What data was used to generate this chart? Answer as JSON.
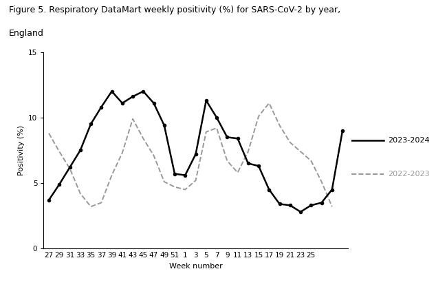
{
  "title_line1": "Figure 5. Respiratory DataMart weekly positivity (%) for SARS-CoV-2 by year,",
  "title_line2": "England",
  "xlabel": "Week number",
  "ylabel": "Positivity (%)",
  "ylim": [
    0,
    15
  ],
  "yticks": [
    0,
    5,
    10,
    15
  ],
  "x_labels": [
    "27",
    "29",
    "31",
    "33",
    "35",
    "37",
    "39",
    "41",
    "43",
    "45",
    "47",
    "49",
    "51",
    "1",
    "3",
    "5",
    "7",
    "9",
    "11",
    "13",
    "15",
    "17",
    "19",
    "21",
    "23",
    "25"
  ],
  "series_2023_2024": {
    "label": "2023-2024",
    "color": "#000000",
    "linestyle": "-",
    "linewidth": 1.8,
    "marker": "o",
    "markersize": 3.0,
    "values": [
      3.7,
      4.9,
      6.2,
      7.5,
      9.5,
      10.8,
      12.0,
      11.1,
      11.6,
      12.0,
      11.1,
      9.4,
      5.7,
      5.6,
      7.2,
      11.3,
      10.0,
      8.5,
      8.4,
      6.5,
      6.3,
      4.5,
      3.4,
      3.3,
      2.8,
      3.3,
      3.5,
      4.5,
      9.0
    ]
  },
  "series_2022_2023": {
    "label": "2022-2023",
    "color": "#999999",
    "linestyle": "--",
    "linewidth": 1.4,
    "values": [
      8.8,
      7.4,
      6.1,
      4.2,
      3.2,
      3.5,
      5.6,
      7.3,
      9.9,
      8.4,
      7.1,
      5.1,
      4.7,
      4.5,
      5.2,
      8.9,
      9.2,
      6.7,
      5.8,
      7.4,
      10.1,
      11.1,
      9.4,
      8.1,
      7.4,
      6.7,
      5.1,
      3.2
    ]
  },
  "background_color": "#ffffff",
  "title_fontsize": 9,
  "axis_fontsize": 8,
  "tick_fontsize": 7.5
}
